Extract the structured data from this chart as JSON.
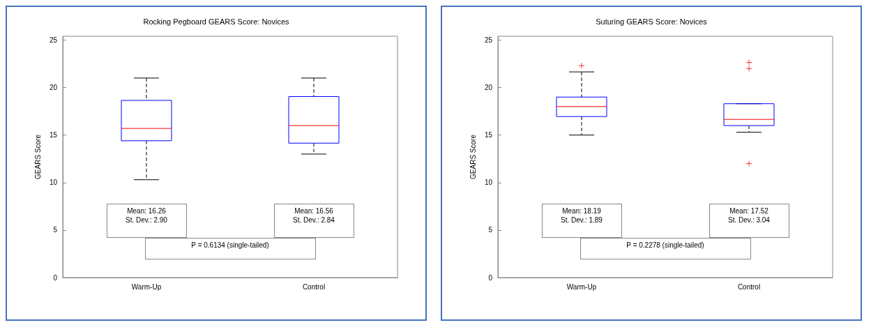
{
  "chart_data": [
    {
      "type": "box",
      "title": "Rocking Pegboard GEARS Score: Novices",
      "ylabel": "GEARS Score",
      "categories": [
        "Warm-Up",
        "Control"
      ],
      "ylim": [
        0,
        25.4
      ],
      "yticks": [
        0,
        5,
        10,
        15,
        20,
        25
      ],
      "grid": false,
      "marker": "cross",
      "series": [
        {
          "color": "#0000ff",
          "boxes": [
            {
              "low": 10.3,
              "q1": 14.4,
              "median": 15.7,
              "q3": 18.65,
              "high": 21.0
            },
            {
              "low": 13.0,
              "q1": 14.15,
              "median": 16.0,
              "q3": 19.05,
              "high": 21.0
            }
          ]
        }
      ],
      "annotations": [
        "Mean: 16.26\nSt. Dev.: 2.90",
        "Mean: 16.56\nSt. Dev.: 2.84",
        "P = 0.6134 (single-tailed)"
      ]
    },
    {
      "type": "box",
      "title": "Suturing GEARS Score: Novices",
      "ylabel": "GEARS Score",
      "categories": [
        "Warm-Up",
        "Control"
      ],
      "ylim": [
        0,
        25.4
      ],
      "yticks": [
        0,
        5,
        10,
        15,
        20,
        25
      ],
      "grid": false,
      "marker": "cross",
      "series": [
        {
          "color": "#0000ff",
          "boxes": [
            {
              "low": 15.0,
              "q1": 16.95,
              "median": 18.0,
              "q3": 19.0,
              "high": 21.65,
              "outliers": [
                22.3
              ]
            },
            {
              "low": 15.3,
              "q1": 16.0,
              "median": 16.65,
              "q3": 18.3,
              "high": 18.3,
              "outliers": [
                22.65,
                22.0,
                12.0
              ]
            }
          ]
        }
      ],
      "annotations": [
        "Mean: 18.19\nSt. Dev.: 1.89",
        "Mean: 17.52\nSt. Dev.: 3.04",
        "P = 0.2278 (single-tailed)"
      ]
    }
  ]
}
